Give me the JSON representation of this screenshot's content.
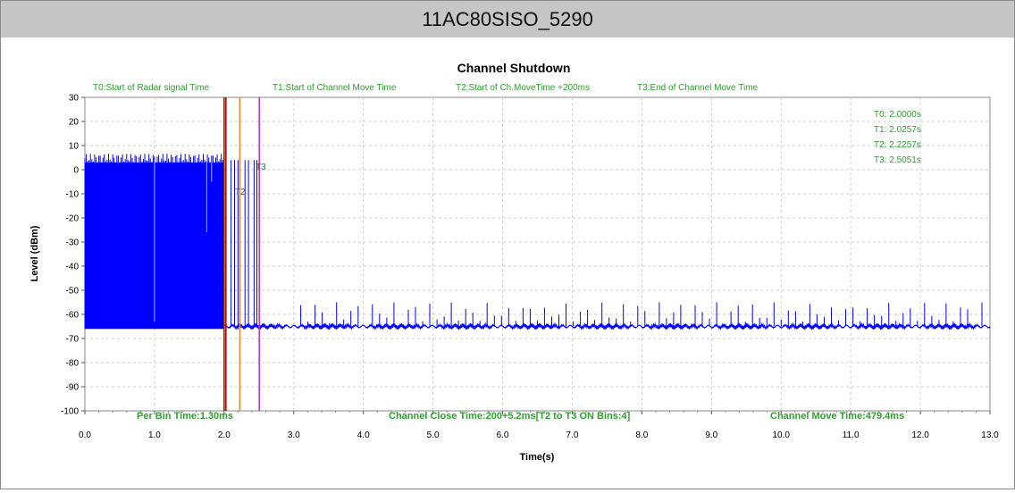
{
  "header": {
    "title": "11AC80SISO_5290"
  },
  "chart_data": {
    "type": "line",
    "title": "Channel Shutdown",
    "xlabel": "Time(s)",
    "ylabel": "Level (dBm)",
    "xlim": [
      0,
      13
    ],
    "ylim": [
      -100,
      30
    ],
    "x_ticks": [
      "0.0",
      "1.0",
      "2.0",
      "3.0",
      "4.0",
      "5.0",
      "6.0",
      "7.0",
      "8.0",
      "9.0",
      "10.0",
      "11.0",
      "12.0",
      "13.0"
    ],
    "y_ticks": [
      "30",
      "20",
      "10",
      "0",
      "-10",
      "-20",
      "-30",
      "-40",
      "-50",
      "-60",
      "-70",
      "-80",
      "-90",
      "-100"
    ],
    "grid": true,
    "legend_top": [
      "T0:Start of Radar signal Time",
      "T1:Start of Channel Move Time",
      "T2:Start of Ch.MoveTime +200ms",
      "T3:End of Channel Move Time"
    ],
    "time_readouts": [
      "T0: 2.0000s",
      "T1: 2.0257s",
      "T2: 2.2257s",
      "T3: 2.5051s"
    ],
    "markers": [
      {
        "name": "T0",
        "x": 2.0,
        "color": "#5a3a1a"
      },
      {
        "name": "T1",
        "x": 2.0257,
        "color": "#c00000"
      },
      {
        "name": "T2",
        "x": 2.2257,
        "color": "#e08a2a"
      },
      {
        "name": "T3",
        "x": 2.5051,
        "color": "#cc33cc"
      }
    ],
    "marker_labels": {
      "t2": "T2",
      "t3": "T3"
    },
    "bottom_labels": {
      "per_bin": "Per Bin Time:1.30ms",
      "close_time": "Channel Close Time:200+5.2ms[T2 to T3 ON Bins:4]",
      "move_time": "Channel Move Time:479.4ms"
    },
    "series": [
      {
        "color": "#0000ff",
        "description": "Radar-burst signal occupies roughly -65 dBm to +5 dBm from 0.0 s to 2.0 s; after channel move, noise floor near -65 dBm with periodic spikes up to about -55 dBm until 13.0 s",
        "points": [
          [
            0.0,
            -65
          ],
          [
            0.0,
            5
          ],
          [
            2.0,
            5
          ],
          [
            2.0,
            -65
          ],
          [
            2.3,
            -65
          ],
          [
            13.0,
            -65
          ]
        ]
      }
    ],
    "colors": {
      "series": "#0000ff",
      "label_green": "#2ea02e",
      "grid": "#cfcfcf"
    }
  }
}
